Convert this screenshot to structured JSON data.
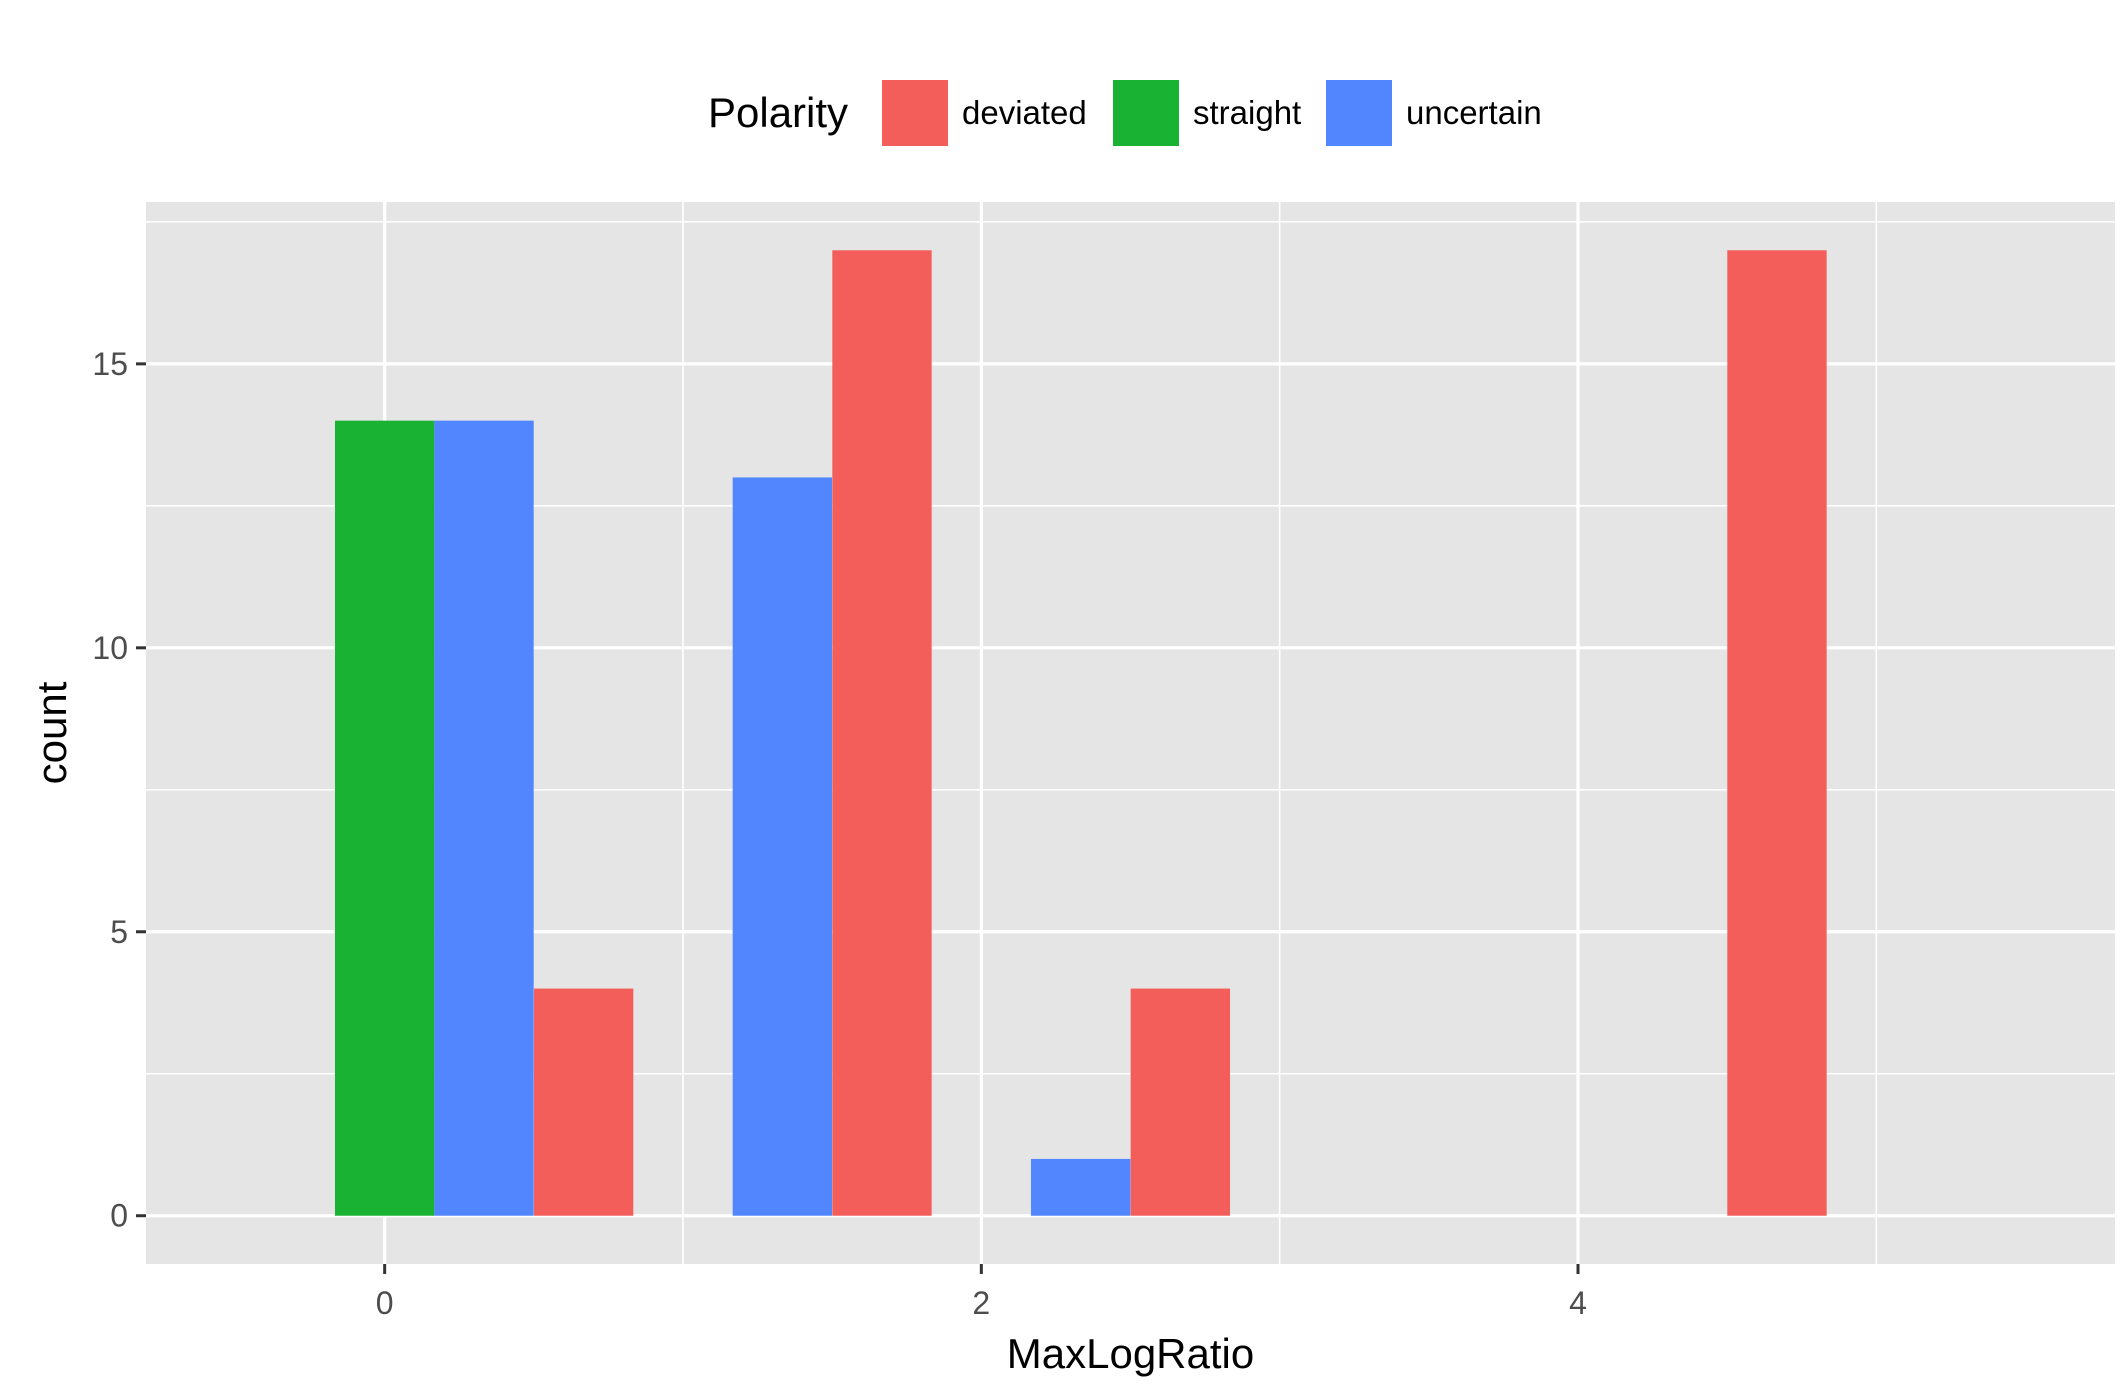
{
  "chart_data": {
    "type": "bar",
    "xlabel": "MaxLogRatio",
    "ylabel": "count",
    "xlim": [
      -0.8,
      5.8
    ],
    "ylim": [
      -0.85,
      17.85
    ],
    "x_ticks": [
      0,
      2,
      4
    ],
    "x_tick_labels": [
      "0",
      "2",
      "4"
    ],
    "y_ticks": [
      0,
      5,
      10,
      15
    ],
    "y_tick_labels": [
      "0",
      "5",
      "10",
      "15"
    ],
    "grid": true,
    "legend": {
      "title": "Polarity",
      "position": "top",
      "entries": [
        {
          "label": "deviated",
          "color": "#F35E5A"
        },
        {
          "label": "straight",
          "color": "#19B233"
        },
        {
          "label": "uncertain",
          "color": "#5186FF"
        }
      ]
    },
    "bar_width": 0.333,
    "bars": [
      {
        "x": 0,
        "series": "straight",
        "count": 14
      },
      {
        "x": 0.333,
        "series": "uncertain",
        "count": 14
      },
      {
        "x": 0.667,
        "series": "deviated",
        "count": 4
      },
      {
        "x": 1.333,
        "series": "uncertain",
        "count": 13
      },
      {
        "x": 1.667,
        "series": "deviated",
        "count": 17
      },
      {
        "x": 2.333,
        "series": "uncertain",
        "count": 1
      },
      {
        "x": 2.667,
        "series": "deviated",
        "count": 4
      },
      {
        "x": 4.667,
        "series": "deviated",
        "count": 17
      }
    ]
  }
}
